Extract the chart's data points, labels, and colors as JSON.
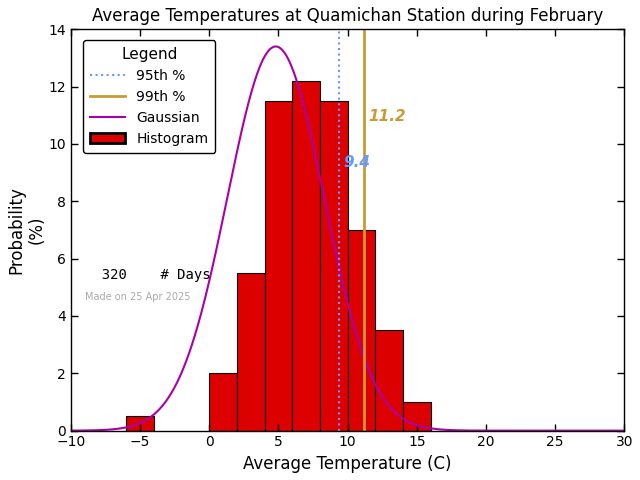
{
  "title": "Average Temperatures at Quamichan Station during February",
  "xlabel": "Average Temperature (C)",
  "ylabel": "Probability\n(%)",
  "xlim": [
    -10,
    30
  ],
  "ylim": [
    0,
    14
  ],
  "xticks": [
    -10,
    -5,
    0,
    5,
    10,
    15,
    20,
    25,
    30
  ],
  "yticks": [
    0,
    2,
    4,
    6,
    8,
    10,
    12,
    14
  ],
  "bin_edges": [
    -8,
    -6,
    -4,
    -2,
    0,
    2,
    4,
    6,
    8,
    10,
    12,
    14,
    16,
    18
  ],
  "bin_heights": [
    0.0,
    0.5,
    0.0,
    0.0,
    2.0,
    5.5,
    11.5,
    12.2,
    11.5,
    7.0,
    3.5,
    1.0,
    0.0,
    0.0
  ],
  "gauss_mean": 4.8,
  "gauss_std": 3.5,
  "gauss_peak": 13.4,
  "percentile_95": 9.4,
  "percentile_99": 11.2,
  "n_days": 320,
  "made_on": "Made on 25 Apr 2025",
  "bar_color": "#dd0000",
  "bar_edge_color": "#000000",
  "gauss_color": "#aa00aa",
  "p95_color": "#6699ff",
  "p99_color": "#cc9933",
  "bg_color": "#ffffff",
  "title_color": "#000000",
  "legend_fontsize": 10,
  "axis_fontsize": 12,
  "title_fontsize": 12
}
